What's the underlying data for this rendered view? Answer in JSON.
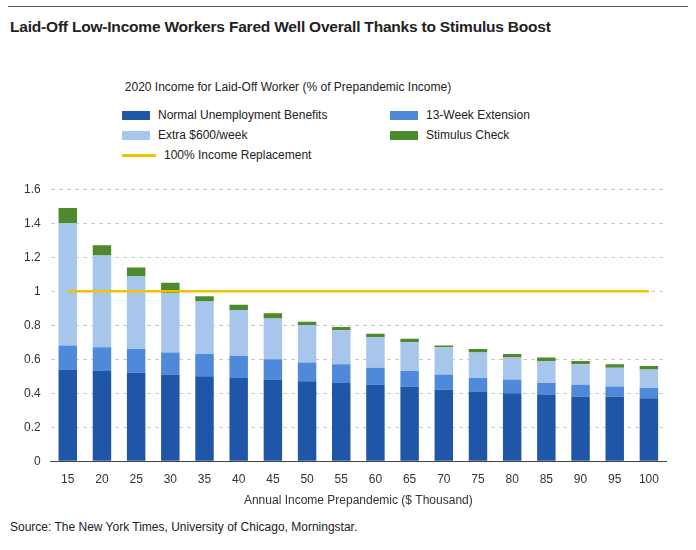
{
  "chart_data": {
    "type": "bar",
    "title": "Laid-Off Low-Income Workers Fared Well Overall Thanks to Stimulus Boost",
    "subtitle": "2020 Income for Laid-Off Worker (% of Prepandemic Income)",
    "x_label": "Annual Income Prepandemic ($ Thousand)",
    "source": "Source: The New York Times, University of Chicago, Morningstar.",
    "categories": [
      "15",
      "20",
      "25",
      "30",
      "35",
      "40",
      "45",
      "50",
      "55",
      "60",
      "65",
      "70",
      "75",
      "80",
      "85",
      "90",
      "95",
      "100"
    ],
    "stacked": true,
    "grid": true,
    "legend": "top",
    "ylim": [
      0,
      1.6
    ],
    "yticks": [
      0,
      0.2,
      0.4,
      0.6,
      0.8,
      1,
      1.2,
      1.4,
      1.6
    ],
    "series": [
      {
        "name": "Normal Unemployment Benefits",
        "color": "#2056a8",
        "values": [
          0.54,
          0.53,
          0.52,
          0.51,
          0.5,
          0.49,
          0.48,
          0.47,
          0.46,
          0.45,
          0.44,
          0.42,
          0.41,
          0.4,
          0.39,
          0.38,
          0.38,
          0.37
        ]
      },
      {
        "name": "13-Week Extension",
        "color": "#4f89d9",
        "values": [
          0.14,
          0.14,
          0.14,
          0.13,
          0.13,
          0.13,
          0.12,
          0.11,
          0.11,
          0.1,
          0.09,
          0.09,
          0.08,
          0.08,
          0.07,
          0.07,
          0.06,
          0.06
        ]
      },
      {
        "name": "Extra $600/week",
        "color": "#a8c5ec",
        "values": [
          0.72,
          0.54,
          0.43,
          0.35,
          0.31,
          0.27,
          0.24,
          0.22,
          0.2,
          0.18,
          0.17,
          0.16,
          0.15,
          0.13,
          0.13,
          0.12,
          0.11,
          0.11
        ]
      },
      {
        "name": "Stimulus Check",
        "color": "#4d8a2c",
        "values": [
          0.09,
          0.06,
          0.05,
          0.06,
          0.03,
          0.03,
          0.03,
          0.02,
          0.02,
          0.02,
          0.02,
          0.01,
          0.02,
          0.02,
          0.02,
          0.02,
          0.02,
          0.02
        ]
      },
      {
        "name": "100% Income Replacement",
        "color": "#f2c200",
        "type": "line",
        "values": [
          1,
          1,
          1,
          1,
          1,
          1,
          1,
          1,
          1,
          1,
          1,
          1,
          1,
          1,
          1,
          1,
          1,
          1
        ]
      }
    ]
  }
}
